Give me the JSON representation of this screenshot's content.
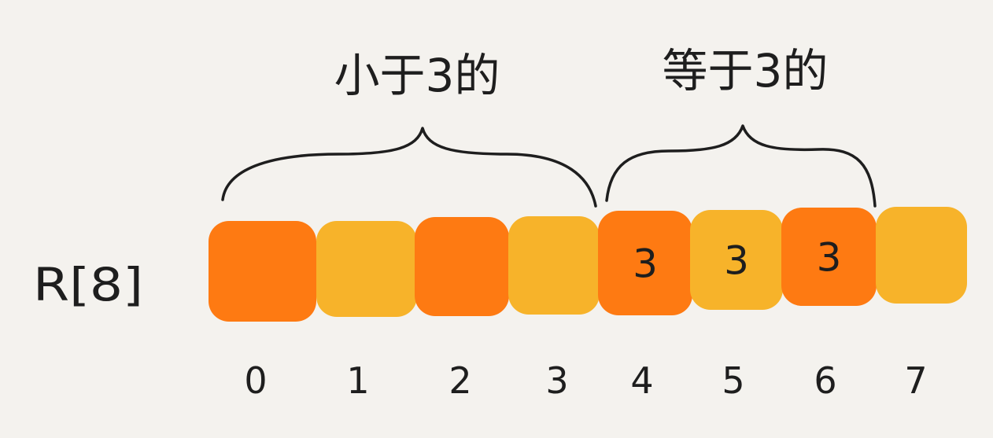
{
  "array_label": "R[8]",
  "groups": [
    {
      "label": "小于3的",
      "from": 0,
      "to": 3
    },
    {
      "label": "等于3的",
      "from": 4,
      "to": 6
    }
  ],
  "cells": [
    {
      "index": "0",
      "value": "",
      "color": "#fe7a12"
    },
    {
      "index": "1",
      "value": "",
      "color": "#f7b32a"
    },
    {
      "index": "2",
      "value": "",
      "color": "#fe7a12"
    },
    {
      "index": "3",
      "value": "",
      "color": "#f7b32a"
    },
    {
      "index": "4",
      "value": "3",
      "color": "#fe7a12"
    },
    {
      "index": "5",
      "value": "3",
      "color": "#f7b32a"
    },
    {
      "index": "6",
      "value": "3",
      "color": "#fe7a12"
    },
    {
      "index": "7",
      "value": "",
      "color": "#f7b32a"
    }
  ],
  "colors": {
    "background": "#f4f2ee",
    "ink": "#1e1e1e"
  }
}
